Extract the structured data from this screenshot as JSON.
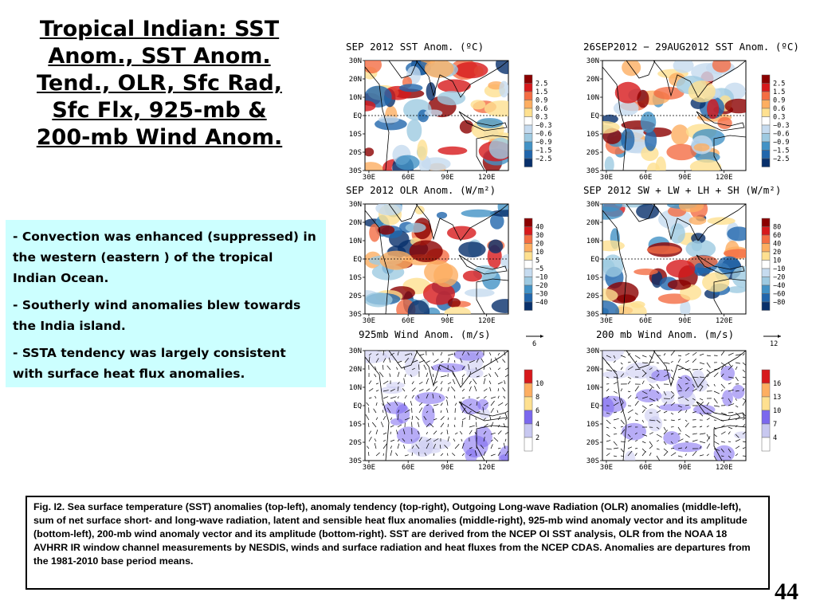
{
  "slide": {
    "title_lines": [
      "Tropical Indian: SST",
      "Anom., SST Anom.",
      "Tend., OLR, Sfc Rad,",
      "Sfc Flx, 925-mb &",
      "200-mb Wind Anom."
    ],
    "bullets": [
      {
        "dash": "- ",
        "text": "Convection was enhanced (suppressed) in the western (eastern ) of the tropical Indian Ocean."
      },
      {
        "dash": "- ",
        "text": "Southerly  wind anomalies blew towards  the India island."
      },
      {
        "dash": "- ",
        "text": "SSTA tendency was largely consistent with surface heat flux anomalies."
      }
    ],
    "caption": "Fig. I2. Sea surface temperature (SST) anomalies (top-left), anomaly tendency (top-right), Outgoing Long-wave Radiation (OLR) anomalies (middle-left), sum of net surface short- and long-wave radiation, latent and sensible heat flux anomalies (middle-right), 925-mb wind anomaly vector and its amplitude (bottom-left), 200-mb wind anomaly vector and its amplitude  (bottom-right). SST are derived from the NCEP OI SST analysis, OLR from the NOAA 18 AVHRR IR window channel measurements by NESDIS, winds and surface radiation and heat fluxes from the NCEP CDAS. Anomalies are  departures from the 1981-2010 base period means.",
    "page_number": "44"
  },
  "axes": {
    "y_labels": [
      "30N",
      "20N",
      "10N",
      "EQ",
      "10S",
      "20S",
      "30S"
    ],
    "x_labels": [
      "30E",
      "60E",
      "90E",
      "120E"
    ]
  },
  "panels": [
    {
      "title": "SEP 2012 SST Anom. (ºC)",
      "kind": "diverging",
      "legend": [
        "2.5",
        "1.5",
        "0.9",
        "0.6",
        "0.3",
        "−0.3",
        "−0.6",
        "−0.9",
        "−1.5",
        "−2.5"
      ]
    },
    {
      "title": "26SEP2012 − 29AUG2012 SST Anom. (ºC)",
      "kind": "diverging",
      "legend": [
        "2.5",
        "1.5",
        "0.9",
        "0.6",
        "0.3",
        "−0.3",
        "−0.6",
        "−0.9",
        "−1.5",
        "−2.5"
      ]
    },
    {
      "title": "SEP 2012 OLR Anom. (W/m²)",
      "kind": "diverging",
      "legend": [
        "40",
        "30",
        "20",
        "10",
        "5",
        "−5",
        "−10",
        "−20",
        "−30",
        "−40"
      ]
    },
    {
      "title": "SEP 2012 SW + LW + LH + SH (W/m²)",
      "kind": "diverging",
      "legend": [
        "80",
        "60",
        "40",
        "20",
        "10",
        "−10",
        "−20",
        "−40",
        "−60",
        "−80"
      ]
    },
    {
      "title": "925mb Wind Anom. (m/s)",
      "kind": "wind",
      "ref_vector": "6",
      "legend": [
        "10",
        "8",
        "6",
        "4",
        "2"
      ]
    },
    {
      "title": "200 mb Wind Anom. (m/s)",
      "kind": "wind",
      "ref_vector": "12",
      "legend": [
        "16",
        "13",
        "10",
        "7",
        "4"
      ]
    }
  ],
  "colors": {
    "diverging": [
      "#8b0000",
      "#d7191c",
      "#f46d43",
      "#fdae61",
      "#fee090",
      "#ffffff",
      "#c6dbef",
      "#9ecae1",
      "#4292c6",
      "#2166ac",
      "#08306b"
    ],
    "wind": [
      "#d7191c",
      "#fdae61",
      "#fee090",
      "#7b68ee",
      "#c8c8f0",
      "#ffffff"
    ],
    "bullet_box": "#ccffff"
  }
}
